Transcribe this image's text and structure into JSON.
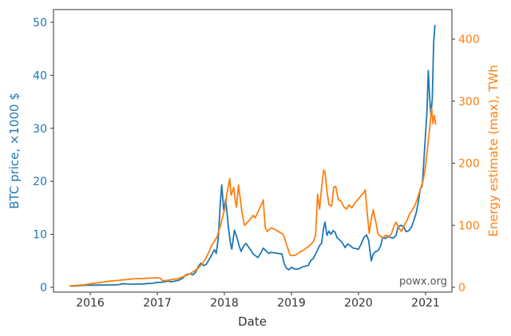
{
  "chart_data": {
    "type": "line",
    "title": "",
    "xlabel": "Date",
    "ylabel_left": "BTC price, ×1000 $",
    "ylabel_right": "Energy estimate (max), TWh",
    "watermark": "powx.org",
    "legend": "none",
    "grid": false,
    "x_ticks": [
      2016,
      2017,
      2018,
      2019,
      2020,
      2021
    ],
    "y_ticks_left": [
      0,
      10,
      20,
      30,
      40,
      50
    ],
    "y_ticks_right": [
      0,
      100,
      200,
      300,
      400
    ],
    "xlim": [
      2015.452,
      2021.393
    ],
    "ylim_left": [
      -0.9,
      52.4
    ],
    "ylim_right": [
      -7.7,
      447.6
    ],
    "colors": {
      "btc_line": "#1f77b4",
      "energy_line": "#ff7f0e",
      "axis": "#333333",
      "x_tick_label": "#333333",
      "watermark": "#555555",
      "background": "#ffffff"
    },
    "series": [
      {
        "name": "BTC price, ×1000 $",
        "axis": "left",
        "color_key": "btc_line",
        "points": [
          [
            2015.7,
            0.26
          ],
          [
            2015.78,
            0.25
          ],
          [
            2015.85,
            0.34
          ],
          [
            2015.92,
            0.38
          ],
          [
            2016.0,
            0.43
          ],
          [
            2016.06,
            0.39
          ],
          [
            2016.13,
            0.42
          ],
          [
            2016.21,
            0.43
          ],
          [
            2016.29,
            0.45
          ],
          [
            2016.37,
            0.46
          ],
          [
            2016.44,
            0.55
          ],
          [
            2016.48,
            0.68
          ],
          [
            2016.52,
            0.67
          ],
          [
            2016.58,
            0.61
          ],
          [
            2016.65,
            0.59
          ],
          [
            2016.72,
            0.62
          ],
          [
            2016.79,
            0.64
          ],
          [
            2016.86,
            0.72
          ],
          [
            2016.93,
            0.75
          ],
          [
            2017.0,
            0.95
          ],
          [
            2017.04,
            0.9
          ],
          [
            2017.1,
            1.02
          ],
          [
            2017.16,
            1.18
          ],
          [
            2017.21,
            1.06
          ],
          [
            2017.27,
            1.2
          ],
          [
            2017.33,
            1.38
          ],
          [
            2017.38,
            1.75
          ],
          [
            2017.42,
            2.3
          ],
          [
            2017.46,
            2.5
          ],
          [
            2017.5,
            2.55
          ],
          [
            2017.53,
            2.35
          ],
          [
            2017.57,
            2.8
          ],
          [
            2017.61,
            3.9
          ],
          [
            2017.65,
            4.55
          ],
          [
            2017.69,
            4.1
          ],
          [
            2017.73,
            4.35
          ],
          [
            2017.77,
            5.2
          ],
          [
            2017.81,
            6.1
          ],
          [
            2017.85,
            7.1
          ],
          [
            2017.88,
            6.4
          ],
          [
            2017.91,
            9.5
          ],
          [
            2017.94,
            16.0
          ],
          [
            2017.96,
            19.3
          ],
          [
            2017.99,
            14.5
          ],
          [
            2018.02,
            16.6
          ],
          [
            2018.06,
            11.3
          ],
          [
            2018.09,
            8.3
          ],
          [
            2018.11,
            7.2
          ],
          [
            2018.15,
            10.8
          ],
          [
            2018.19,
            9.3
          ],
          [
            2018.22,
            7.8
          ],
          [
            2018.25,
            6.8
          ],
          [
            2018.28,
            7.6
          ],
          [
            2018.32,
            8.3
          ],
          [
            2018.36,
            7.6
          ],
          [
            2018.4,
            6.9
          ],
          [
            2018.43,
            6.3
          ],
          [
            2018.47,
            5.9
          ],
          [
            2018.5,
            5.6
          ],
          [
            2018.54,
            6.4
          ],
          [
            2018.58,
            7.4
          ],
          [
            2018.62,
            6.9
          ],
          [
            2018.66,
            6.4
          ],
          [
            2018.7,
            6.6
          ],
          [
            2018.75,
            6.5
          ],
          [
            2018.8,
            6.4
          ],
          [
            2018.86,
            6.3
          ],
          [
            2018.89,
            4.5
          ],
          [
            2018.92,
            3.7
          ],
          [
            2018.96,
            3.3
          ],
          [
            2019.0,
            3.8
          ],
          [
            2019.04,
            3.5
          ],
          [
            2019.08,
            3.4
          ],
          [
            2019.13,
            3.6
          ],
          [
            2019.17,
            3.9
          ],
          [
            2019.21,
            4.0
          ],
          [
            2019.25,
            4.1
          ],
          [
            2019.29,
            5.1
          ],
          [
            2019.33,
            5.5
          ],
          [
            2019.38,
            6.8
          ],
          [
            2019.42,
            7.9
          ],
          [
            2019.45,
            8.3
          ],
          [
            2019.48,
            11.2
          ],
          [
            2019.5,
            12.3
          ],
          [
            2019.53,
            9.8
          ],
          [
            2019.56,
            10.6
          ],
          [
            2019.59,
            10.0
          ],
          [
            2019.62,
            10.7
          ],
          [
            2019.65,
            10.4
          ],
          [
            2019.68,
            9.4
          ],
          [
            2019.72,
            8.9
          ],
          [
            2019.76,
            8.4
          ],
          [
            2019.8,
            7.5
          ],
          [
            2019.84,
            8.2
          ],
          [
            2019.88,
            7.8
          ],
          [
            2019.92,
            7.4
          ],
          [
            2019.96,
            7.3
          ],
          [
            2020.0,
            7.2
          ],
          [
            2020.04,
            8.2
          ],
          [
            2020.08,
            9.4
          ],
          [
            2020.12,
            9.9
          ],
          [
            2020.15,
            8.9
          ],
          [
            2020.19,
            5.0
          ],
          [
            2020.22,
            6.3
          ],
          [
            2020.25,
            6.7
          ],
          [
            2020.29,
            6.9
          ],
          [
            2020.33,
            7.8
          ],
          [
            2020.36,
            9.4
          ],
          [
            2020.4,
            9.2
          ],
          [
            2020.44,
            9.6
          ],
          [
            2020.48,
            9.4
          ],
          [
            2020.52,
            9.3
          ],
          [
            2020.56,
            9.8
          ],
          [
            2020.59,
            11.4
          ],
          [
            2020.63,
            11.7
          ],
          [
            2020.67,
            11.5
          ],
          [
            2020.71,
            10.5
          ],
          [
            2020.75,
            10.7
          ],
          [
            2020.79,
            11.4
          ],
          [
            2020.83,
            12.8
          ],
          [
            2020.86,
            14.0
          ],
          [
            2020.89,
            16.0
          ],
          [
            2020.92,
            18.5
          ],
          [
            2020.95,
            19.2
          ],
          [
            2020.97,
            23.0
          ],
          [
            2021.0,
            29.0
          ],
          [
            2021.02,
            33.0
          ],
          [
            2021.04,
            40.9
          ],
          [
            2021.06,
            36.0
          ],
          [
            2021.08,
            32.5
          ],
          [
            2021.1,
            35.5
          ],
          [
            2021.12,
            46.0
          ],
          [
            2021.14,
            49.4
          ]
        ]
      },
      {
        "name": "Energy estimate (max), TWh",
        "axis": "right",
        "color_key": "energy_line",
        "points": [
          [
            2015.7,
            2.5
          ],
          [
            2015.8,
            3
          ],
          [
            2015.9,
            4
          ],
          [
            2016.0,
            5.5
          ],
          [
            2016.1,
            7
          ],
          [
            2016.2,
            8.5
          ],
          [
            2016.3,
            10
          ],
          [
            2016.4,
            11
          ],
          [
            2016.48,
            12
          ],
          [
            2016.55,
            12.5
          ],
          [
            2016.62,
            13.5
          ],
          [
            2016.7,
            14
          ],
          [
            2016.78,
            14
          ],
          [
            2016.85,
            14.5
          ],
          [
            2016.92,
            15
          ],
          [
            2016.99,
            15.5
          ],
          [
            2017.04,
            15
          ],
          [
            2017.08,
            10.5
          ],
          [
            2017.13,
            11
          ],
          [
            2017.19,
            12
          ],
          [
            2017.25,
            13
          ],
          [
            2017.31,
            14
          ],
          [
            2017.37,
            16.5
          ],
          [
            2017.43,
            19
          ],
          [
            2017.49,
            22
          ],
          [
            2017.55,
            26
          ],
          [
            2017.61,
            31
          ],
          [
            2017.67,
            38
          ],
          [
            2017.72,
            46
          ],
          [
            2017.77,
            57
          ],
          [
            2017.81,
            68
          ],
          [
            2017.85,
            74
          ],
          [
            2017.89,
            81
          ],
          [
            2017.93,
            95
          ],
          [
            2017.97,
            112
          ],
          [
            2018.01,
            128
          ],
          [
            2018.04,
            152
          ],
          [
            2018.08,
            175
          ],
          [
            2018.1,
            148
          ],
          [
            2018.14,
            161
          ],
          [
            2018.16,
            141
          ],
          [
            2018.18,
            129
          ],
          [
            2018.21,
            165
          ],
          [
            2018.24,
            140
          ],
          [
            2018.26,
            122
          ],
          [
            2018.3,
            100
          ],
          [
            2018.33,
            103
          ],
          [
            2018.38,
            109
          ],
          [
            2018.43,
            116
          ],
          [
            2018.46,
            112
          ],
          [
            2018.52,
            126
          ],
          [
            2018.56,
            135
          ],
          [
            2018.58,
            141
          ],
          [
            2018.61,
            96
          ],
          [
            2018.64,
            90
          ],
          [
            2018.7,
            96
          ],
          [
            2018.76,
            93
          ],
          [
            2018.82,
            89
          ],
          [
            2018.88,
            85
          ],
          [
            2018.93,
            68
          ],
          [
            2018.98,
            52
          ],
          [
            2019.03,
            51
          ],
          [
            2019.08,
            53
          ],
          [
            2019.13,
            57
          ],
          [
            2019.18,
            60
          ],
          [
            2019.23,
            64
          ],
          [
            2019.28,
            68
          ],
          [
            2019.33,
            74
          ],
          [
            2019.36,
            84
          ],
          [
            2019.39,
            150
          ],
          [
            2019.42,
            126
          ],
          [
            2019.45,
            160
          ],
          [
            2019.48,
            189
          ],
          [
            2019.5,
            186
          ],
          [
            2019.53,
            155
          ],
          [
            2019.56,
            133
          ],
          [
            2019.6,
            131
          ],
          [
            2019.63,
            161
          ],
          [
            2019.66,
            163
          ],
          [
            2019.7,
            141
          ],
          [
            2019.74,
            139
          ],
          [
            2019.78,
            130
          ],
          [
            2019.82,
            126
          ],
          [
            2019.86,
            133
          ],
          [
            2019.9,
            128
          ],
          [
            2019.94,
            135
          ],
          [
            2019.98,
            140
          ],
          [
            2020.04,
            148
          ],
          [
            2020.08,
            153
          ],
          [
            2020.1,
            157
          ],
          [
            2020.13,
            120
          ],
          [
            2020.16,
            87
          ],
          [
            2020.19,
            110
          ],
          [
            2020.22,
            125
          ],
          [
            2020.24,
            113
          ],
          [
            2020.26,
            105
          ],
          [
            2020.29,
            86
          ],
          [
            2020.33,
            82
          ],
          [
            2020.37,
            80
          ],
          [
            2020.41,
            84
          ],
          [
            2020.45,
            82
          ],
          [
            2020.49,
            86
          ],
          [
            2020.53,
            99
          ],
          [
            2020.56,
            105
          ],
          [
            2020.6,
            96
          ],
          [
            2020.64,
            90
          ],
          [
            2020.68,
            100
          ],
          [
            2020.72,
            107
          ],
          [
            2020.76,
            118
          ],
          [
            2020.8,
            124
          ],
          [
            2020.84,
            132
          ],
          [
            2020.88,
            143
          ],
          [
            2020.92,
            158
          ],
          [
            2020.96,
            170
          ],
          [
            2021.0,
            195
          ],
          [
            2021.03,
            225
          ],
          [
            2021.06,
            255
          ],
          [
            2021.09,
            289
          ],
          [
            2021.11,
            264
          ],
          [
            2021.13,
            277
          ],
          [
            2021.15,
            263
          ]
        ]
      }
    ]
  }
}
